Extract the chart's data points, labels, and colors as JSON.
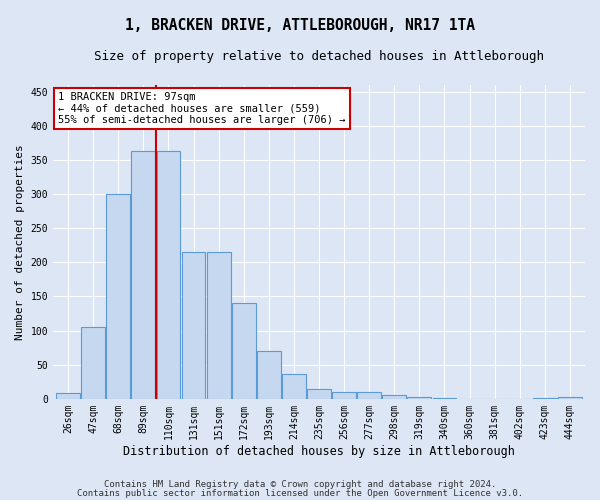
{
  "title": "1, BRACKEN DRIVE, ATTLEBOROUGH, NR17 1TA",
  "subtitle": "Size of property relative to detached houses in Attleborough",
  "xlabel": "Distribution of detached houses by size in Attleborough",
  "ylabel": "Number of detached properties",
  "footnote1": "Contains HM Land Registry data © Crown copyright and database right 2024.",
  "footnote2": "Contains public sector information licensed under the Open Government Licence v3.0.",
  "categories": [
    "26sqm",
    "47sqm",
    "68sqm",
    "89sqm",
    "110sqm",
    "131sqm",
    "151sqm",
    "172sqm",
    "193sqm",
    "214sqm",
    "235sqm",
    "256sqm",
    "277sqm",
    "298sqm",
    "319sqm",
    "340sqm",
    "360sqm",
    "381sqm",
    "402sqm",
    "423sqm",
    "444sqm"
  ],
  "bar_heights": [
    8,
    105,
    300,
    363,
    363,
    215,
    215,
    140,
    70,
    37,
    15,
    10,
    10,
    5,
    2,
    1,
    0,
    0,
    0,
    1,
    2
  ],
  "bar_color": "#c5d8f0",
  "bar_edge_color": "#5b9bd5",
  "bar_edge_width": 0.8,
  "red_line_x": 3.5,
  "red_line_color": "#cc0000",
  "annotation_text": "1 BRACKEN DRIVE: 97sqm\n← 44% of detached houses are smaller (559)\n55% of semi-detached houses are larger (706) →",
  "annotation_box_color": "#ffffff",
  "annotation_box_edge": "#cc0000",
  "annotation_fontsize": 7.5,
  "ylim": [
    0,
    460
  ],
  "yticks": [
    0,
    50,
    100,
    150,
    200,
    250,
    300,
    350,
    400,
    450
  ],
  "background_color": "#dce6f5",
  "plot_bg_color": "#dce6f5",
  "grid_color": "#ffffff",
  "title_fontsize": 10.5,
  "subtitle_fontsize": 9,
  "xlabel_fontsize": 8.5,
  "ylabel_fontsize": 8,
  "tick_fontsize": 7,
  "footnote_fontsize": 6.5
}
